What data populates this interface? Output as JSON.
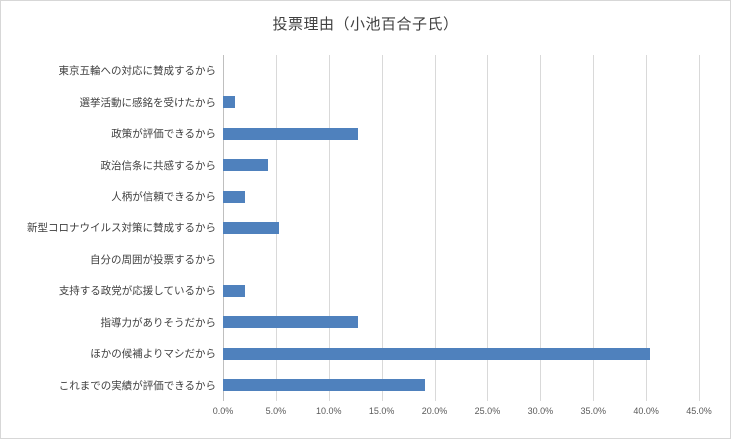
{
  "window": {
    "background": "#ffffff",
    "border_color": "#d7d7d7"
  },
  "chart_data": {
    "type": "bar",
    "orientation": "horizontal",
    "title": "投票理由（小池百合子氏）",
    "categories": [
      "東京五輪への対応に賛成するから",
      "選挙活動に感銘を受けたから",
      "政策が評価できるから",
      "政治信条に共感するから",
      "人柄が信頼できるから",
      "新型コロナウイルス対策に賛成するから",
      "自分の周囲が投票するから",
      "支持する政党が応援しているから",
      "指導力がありそうだから",
      "ほかの候補よりマシだから",
      "これまでの実績が評価できるから"
    ],
    "values": [
      0.0,
      1.1,
      12.8,
      4.3,
      2.1,
      5.3,
      0.0,
      2.1,
      12.8,
      40.4,
      19.1
    ],
    "xlim": [
      0,
      45
    ],
    "x_tick_step": 5,
    "x_tick_labels": [
      "0.0%",
      "5.0%",
      "10.0%",
      "15.0%",
      "20.0%",
      "25.0%",
      "30.0%",
      "35.0%",
      "40.0%",
      "45.0%"
    ],
    "xlabel": "",
    "ylabel": "",
    "grid": true,
    "legend_position": "none",
    "bar_color": "#4f81bd",
    "gridline_color": "#d9d9d9",
    "axis_line_color": "#bfbfbf",
    "text_color": "#404040",
    "tick_text_color": "#595959"
  }
}
